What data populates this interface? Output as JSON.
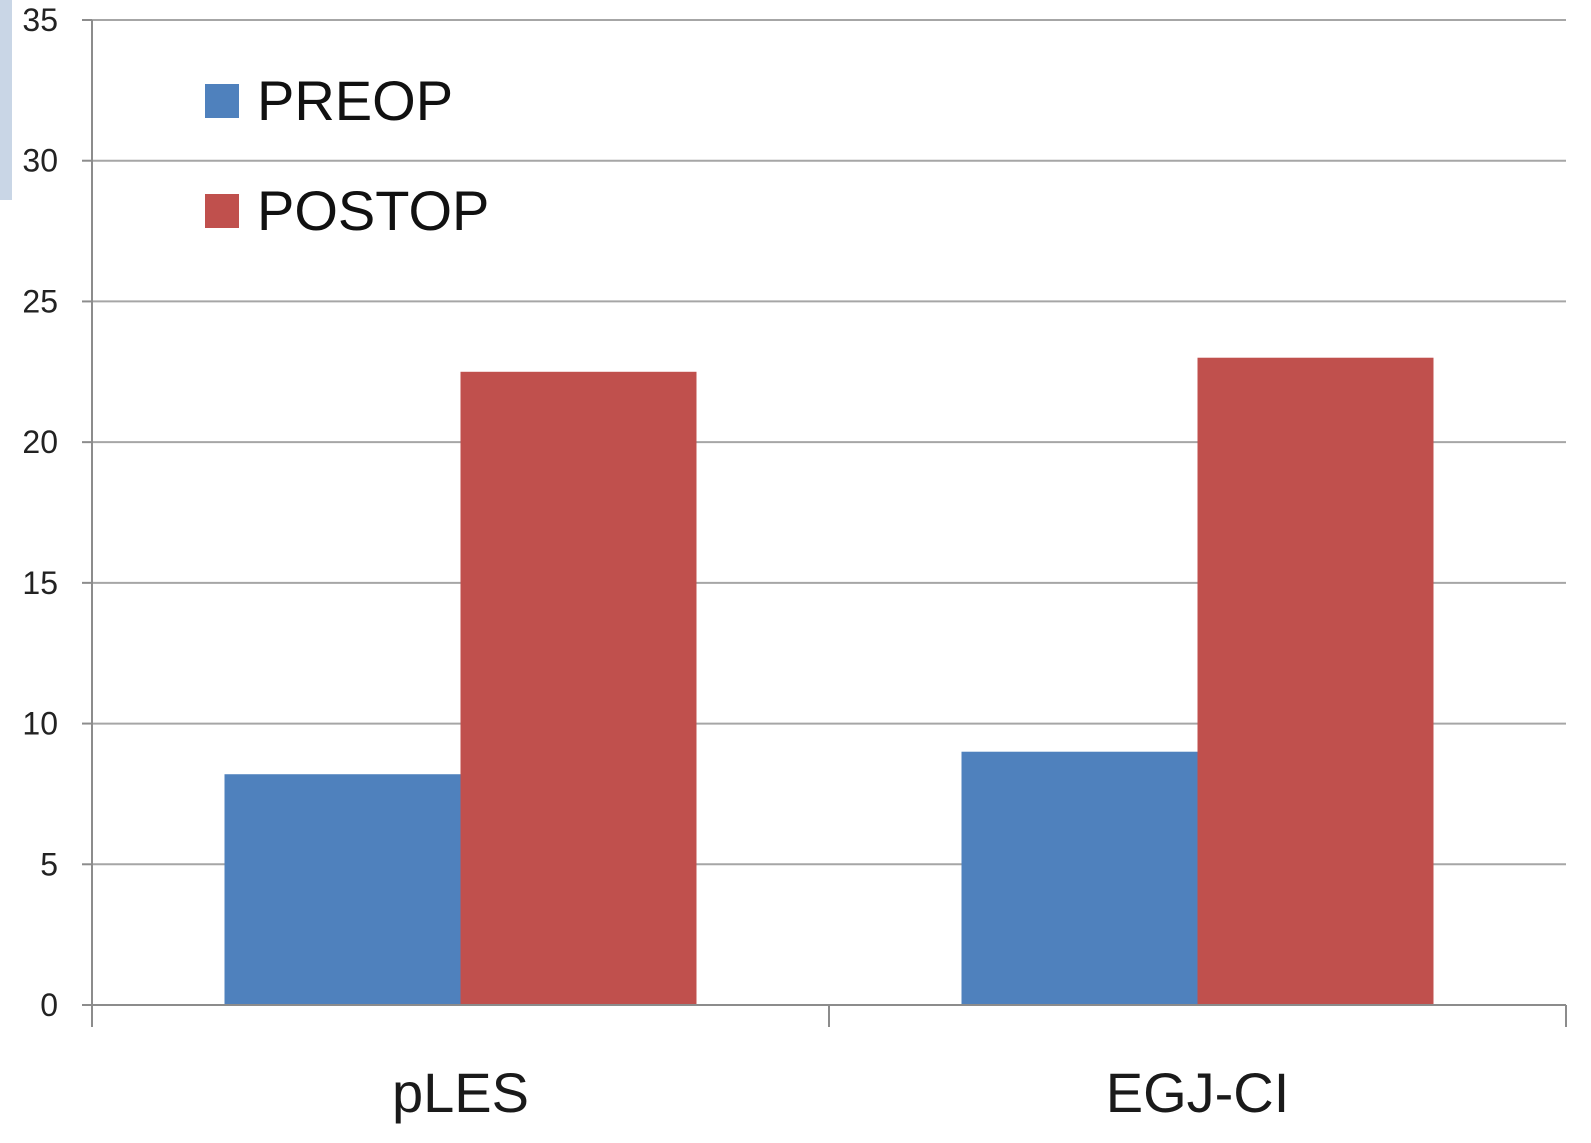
{
  "chart_data": {
    "type": "bar",
    "categories": [
      "pLES",
      "EGJ-CI"
    ],
    "series": [
      {
        "name": "PREOP",
        "values": [
          8.2,
          9.0
        ],
        "color": "#4f81bd"
      },
      {
        "name": "POSTOP",
        "values": [
          22.5,
          23.0
        ],
        "color": "#c0504d"
      }
    ],
    "ylim": [
      0,
      35
    ],
    "yticks": [
      0,
      5,
      10,
      15,
      20,
      25,
      30,
      35
    ],
    "title": "",
    "xlabel": "",
    "ylabel": "",
    "grid": true,
    "legend_position": "top-left"
  }
}
